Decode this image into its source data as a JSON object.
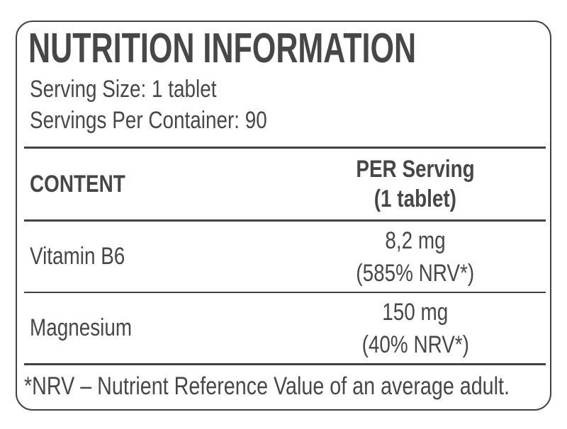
{
  "label": {
    "title": "NUTRITION INFORMATION",
    "serving_size": "Serving Size: 1 tablet",
    "servings_per_container": "Servings Per Container: 90",
    "table": {
      "content_header": "CONTENT",
      "per_serving_header_line1": "PER Serving",
      "per_serving_header_line2": "(1 tablet)",
      "rows": [
        {
          "name": "Vitamin B6",
          "amount": "8,2 mg",
          "nrv": "(585% NRV*)"
        },
        {
          "name": "Magnesium",
          "amount": "150 mg",
          "nrv": "(40% NRV*)"
        }
      ]
    },
    "footnote": "*NRV – Nutrient Reference Value of an average adult.",
    "colors": {
      "text": "#474747",
      "line": "#424242",
      "background": "#ffffff"
    }
  }
}
